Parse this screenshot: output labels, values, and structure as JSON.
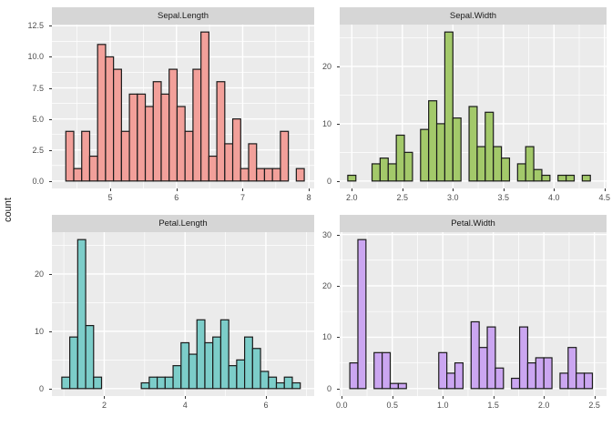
{
  "figure": {
    "ylabel": "count",
    "background": "#FFFFFF",
    "panel_bg": "#EBEBEB",
    "strip_bg": "#D6D6D6",
    "grid_color": "#FFFFFF",
    "bar_stroke": "#1A1A1A",
    "axis_text_color": "#4D4D4D",
    "tick_mark_color": "#333333"
  },
  "chart_data": [
    {
      "type": "histogram",
      "title": "Sepal.Length",
      "fill": "#F2A09A",
      "bin_start": 4.33,
      "bin_width": 0.12,
      "counts": [
        4,
        1,
        4,
        2,
        11,
        10,
        9,
        4,
        7,
        7,
        6,
        8,
        7,
        9,
        6,
        4,
        9,
        12,
        2,
        8,
        3,
        5,
        1,
        3,
        1,
        1,
        1,
        4,
        0,
        1
      ],
      "x_domain": [
        4.12,
        8.08
      ],
      "y_domain": [
        -0.6,
        12.6
      ],
      "x_ticks": [
        {
          "v": 5,
          "label": "5"
        },
        {
          "v": 6,
          "label": "6"
        },
        {
          "v": 7,
          "label": "7"
        },
        {
          "v": 8,
          "label": "8"
        }
      ],
      "y_ticks": [
        {
          "v": 0,
          "label": "0.0"
        },
        {
          "v": 2.5,
          "label": "2.5"
        },
        {
          "v": 5,
          "label": "5.0"
        },
        {
          "v": 7.5,
          "label": "7.5"
        },
        {
          "v": 10,
          "label": "10.0"
        },
        {
          "v": 12.5,
          "label": "12.5"
        }
      ],
      "x_minor": [
        4.5,
        5.5,
        6.5,
        7.5
      ],
      "y_minor": [
        1.25,
        3.75,
        6.25,
        8.75,
        11.25
      ]
    },
    {
      "type": "histogram",
      "title": "Sepal.Width",
      "fill": "#A3C96A",
      "bin_start": 1.96,
      "bin_width": 0.08,
      "counts": [
        1,
        0,
        0,
        3,
        4,
        3,
        8,
        5,
        0,
        9,
        14,
        10,
        26,
        11,
        0,
        13,
        6,
        12,
        6,
        4,
        0,
        3,
        6,
        2,
        1,
        0,
        1,
        1,
        0,
        1
      ],
      "x_domain": [
        1.88,
        4.52
      ],
      "y_domain": [
        -1.3,
        27.3
      ],
      "x_ticks": [
        {
          "v": 2.0,
          "label": "2.0"
        },
        {
          "v": 2.5,
          "label": "2.5"
        },
        {
          "v": 3.0,
          "label": "3.0"
        },
        {
          "v": 3.5,
          "label": "3.5"
        },
        {
          "v": 4.0,
          "label": "4.0"
        },
        {
          "v": 4.5,
          "label": "4.5"
        }
      ],
      "y_ticks": [
        {
          "v": 0,
          "label": "0"
        },
        {
          "v": 10,
          "label": "10"
        },
        {
          "v": 20,
          "label": "20"
        }
      ],
      "x_minor": [
        2.25,
        2.75,
        3.25,
        3.75,
        4.25
      ],
      "y_minor": [
        5,
        15,
        25
      ]
    },
    {
      "type": "histogram",
      "title": "Petal.Length",
      "fill": "#7CCDC9",
      "bin_start": 0.95,
      "bin_width": 0.19667,
      "counts": [
        2,
        9,
        26,
        11,
        2,
        0,
        0,
        0,
        0,
        0,
        1,
        2,
        2,
        2,
        4,
        8,
        6,
        12,
        8,
        9,
        12,
        4,
        5,
        9,
        7,
        3,
        2,
        1,
        2,
        1
      ],
      "x_domain": [
        0.705,
        7.195
      ],
      "y_domain": [
        -1.3,
        27.3
      ],
      "x_ticks": [
        {
          "v": 2,
          "label": "2"
        },
        {
          "v": 4,
          "label": "4"
        },
        {
          "v": 6,
          "label": "6"
        }
      ],
      "y_ticks": [
        {
          "v": 0,
          "label": "0"
        },
        {
          "v": 10,
          "label": "10"
        },
        {
          "v": 20,
          "label": "20"
        }
      ],
      "x_minor": [
        1,
        3,
        5,
        7
      ],
      "y_minor": [
        5,
        15,
        25
      ]
    },
    {
      "type": "histogram",
      "title": "Petal.Width",
      "fill": "#CBA6F1",
      "bin_start": 0.08,
      "bin_width": 0.08,
      "counts": [
        5,
        29,
        0,
        7,
        7,
        1,
        1,
        0,
        0,
        0,
        0,
        7,
        3,
        5,
        0,
        13,
        8,
        12,
        4,
        0,
        2,
        12,
        5,
        6,
        6,
        0,
        3,
        8,
        3,
        3
      ],
      "x_domain": [
        -0.02,
        2.62
      ],
      "y_domain": [
        -1.45,
        30.45
      ],
      "x_ticks": [
        {
          "v": 0.0,
          "label": "0.0"
        },
        {
          "v": 0.5,
          "label": "0.5"
        },
        {
          "v": 1.0,
          "label": "1.0"
        },
        {
          "v": 1.5,
          "label": "1.5"
        },
        {
          "v": 2.0,
          "label": "2.0"
        },
        {
          "v": 2.5,
          "label": "2.5"
        }
      ],
      "y_ticks": [
        {
          "v": 0,
          "label": "0"
        },
        {
          "v": 10,
          "label": "10"
        },
        {
          "v": 20,
          "label": "20"
        },
        {
          "v": 30,
          "label": "30"
        }
      ],
      "x_minor": [
        0.25,
        0.75,
        1.25,
        1.75,
        2.25
      ],
      "y_minor": [
        5,
        15,
        25
      ]
    }
  ]
}
